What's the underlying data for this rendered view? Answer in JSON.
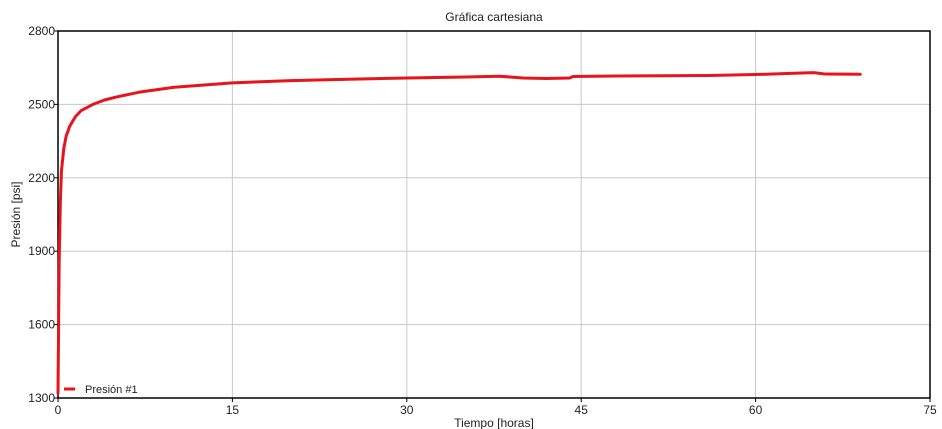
{
  "chart_data": {
    "type": "line",
    "title": "Gráfica cartesiana",
    "xlabel": "Tiempo [horas]",
    "ylabel": "Presión [psi]",
    "xlim": [
      0,
      75
    ],
    "ylim": [
      1300,
      2800
    ],
    "xticks": [
      0,
      15,
      30,
      45,
      60,
      75
    ],
    "yticks": [
      1300,
      1600,
      1900,
      2200,
      2500,
      2800
    ],
    "xtick_labels": [
      "0",
      "15",
      "30",
      "45",
      "60",
      "75"
    ],
    "ytick_labels": [
      "1300",
      "1600",
      "1900",
      "2200",
      "2500",
      "2800"
    ],
    "grid": true,
    "legend_position": "bottom-left",
    "colors": {
      "series": "#e8141c",
      "grid": "#c8c8c8",
      "frame": "#000000"
    },
    "series": [
      {
        "name": "Presión #1",
        "x": [
          0,
          0.1,
          0.2,
          0.3,
          0.5,
          0.7,
          1,
          1.5,
          2,
          3,
          4,
          5,
          7,
          10,
          15,
          20,
          25,
          30,
          35,
          38,
          40,
          42,
          44,
          44.3,
          48,
          52,
          56,
          60,
          63,
          65,
          66,
          69
        ],
        "y": [
          1320,
          1850,
          2100,
          2230,
          2320,
          2370,
          2410,
          2450,
          2475,
          2500,
          2518,
          2530,
          2550,
          2570,
          2588,
          2597,
          2603,
          2608,
          2612,
          2615,
          2608,
          2606,
          2608,
          2614,
          2616,
          2617,
          2618,
          2622,
          2627,
          2630,
          2624,
          2623
        ]
      }
    ]
  }
}
